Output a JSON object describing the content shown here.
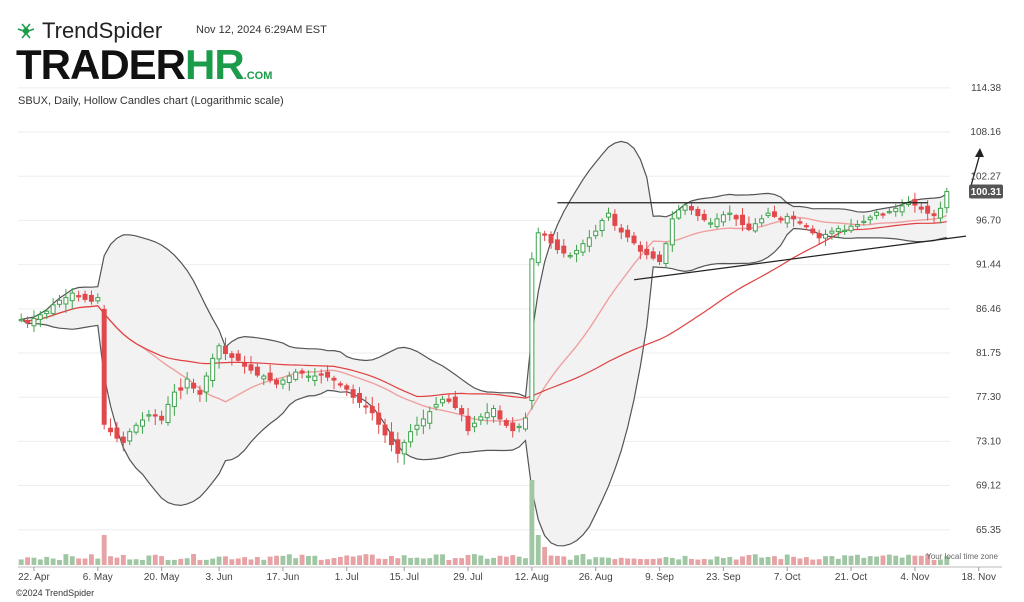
{
  "header": {
    "brand_name": "TrendSpider",
    "timestamp": "Nov 12, 2024 6:29AM EST",
    "watermark_main": "TRADER",
    "watermark_accent": "HR",
    "watermark_suffix": ".COM",
    "subtitle": "SBUX, Daily, Hollow Candles chart (Logarithmic scale)"
  },
  "footer": {
    "copyright": "©2024 TrendSpider",
    "timezone_note": "Your local time zone"
  },
  "colors": {
    "up": "#3fa34d",
    "down": "#e0484b",
    "band_fill": "#f2f2f2",
    "band_line": "#555555",
    "ma_fast": "#f0a0a0",
    "ma_slow": "#e04040",
    "price_badge": "#555555",
    "volume_up": "#9fc7a3",
    "volume_down": "#e6a2a4"
  },
  "chart_data": {
    "type": "candlestick",
    "ticker": "SBUX",
    "interval": "Daily",
    "scale": "log",
    "y_ticks": [
      114.38,
      108.16,
      102.27,
      96.7,
      91.44,
      86.46,
      81.75,
      77.3,
      73.1,
      69.12,
      65.35
    ],
    "ylim": [
      62.5,
      118.5
    ],
    "last_price": 100.31,
    "x_labels": [
      {
        "label": "22. Apr",
        "index": 2
      },
      {
        "label": "6. May",
        "index": 12
      },
      {
        "label": "20. May",
        "index": 22
      },
      {
        "label": "3. Jun",
        "index": 31
      },
      {
        "label": "17. Jun",
        "index": 41
      },
      {
        "label": "1. Jul",
        "index": 51
      },
      {
        "label": "15. Jul",
        "index": 60
      },
      {
        "label": "29. Jul",
        "index": 70
      },
      {
        "label": "12. Aug",
        "index": 80
      },
      {
        "label": "26. Aug",
        "index": 90
      },
      {
        "label": "9. Sep",
        "index": 100
      },
      {
        "label": "23. Sep",
        "index": 110
      },
      {
        "label": "7. Oct",
        "index": 120
      },
      {
        "label": "21. Oct",
        "index": 130
      },
      {
        "label": "4. Nov",
        "index": 140
      },
      {
        "label": "18. Nov",
        "index": 150
      }
    ],
    "closes": [
      85.3,
      85.0,
      85.4,
      85.8,
      86.2,
      86.9,
      87.4,
      87.7,
      88.2,
      87.9,
      87.5,
      87.3,
      87.7,
      74.7,
      74.0,
      73.4,
      73.0,
      74.0,
      74.6,
      75.1,
      75.6,
      75.5,
      75.1,
      76.6,
      77.8,
      78.0,
      79.1,
      78.2,
      77.6,
      79.4,
      81.2,
      82.5,
      81.7,
      81.3,
      81.0,
      80.4,
      80.0,
      79.5,
      79.4,
      79.0,
      78.6,
      79.0,
      79.4,
      79.8,
      79.7,
      79.4,
      79.4,
      79.6,
      79.3,
      79.0,
      78.6,
      78.1,
      77.3,
      76.8,
      76.4,
      75.8,
      74.7,
      73.7,
      72.8,
      72.0,
      73.0,
      74.0,
      74.6,
      75.2,
      75.9,
      76.6,
      77.1,
      76.9,
      76.3,
      75.7,
      74.1,
      74.8,
      75.4,
      75.8,
      76.2,
      75.2,
      74.6,
      74.1,
      74.5,
      75.3,
      92.1,
      95.2,
      95.0,
      94.0,
      93.2,
      92.8,
      92.5,
      93.1,
      93.9,
      94.6,
      95.4,
      96.7,
      97.6,
      96.1,
      95.3,
      94.7,
      94.0,
      93.0,
      92.6,
      92.2,
      91.8,
      93.9,
      96.9,
      98.0,
      98.6,
      98.0,
      97.3,
      96.8,
      96.4,
      96.9,
      97.4,
      97.6,
      96.9,
      96.2,
      95.6,
      96.3,
      96.9,
      97.6,
      97.2,
      96.8,
      97.2,
      96.9,
      96.4,
      96.0,
      95.2,
      94.6,
      95.0,
      95.4,
      95.7,
      95.5,
      96.0,
      96.2,
      96.6,
      97.1,
      97.7,
      97.5,
      97.8,
      98.2,
      98.5,
      98.9,
      98.6,
      98.1,
      97.6,
      97.3,
      98.2,
      100.31
    ]
  }
}
